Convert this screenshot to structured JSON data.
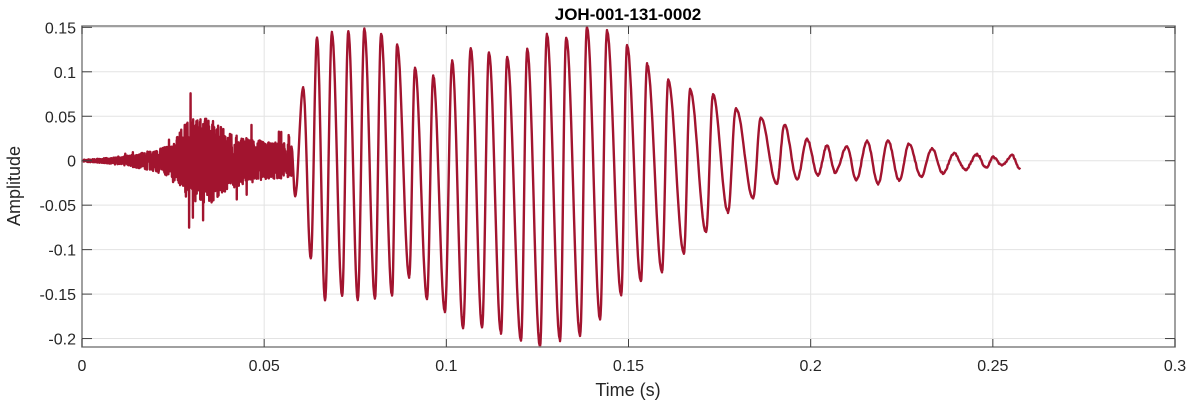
{
  "chart_data": {
    "type": "line",
    "title": "JOH-001-131-0002",
    "xlabel": "Time (s)",
    "ylabel": "Amplitude",
    "xlim": [
      0,
      0.3
    ],
    "ylim": [
      -0.2095,
      0.1515
    ],
    "xticks": [
      0,
      0.05,
      0.1,
      0.15,
      0.2,
      0.25,
      0.3
    ],
    "xtick_labels": [
      "0",
      "0.05",
      "0.1",
      "0.15",
      "0.2",
      "0.25",
      "0.3"
    ],
    "yticks": [
      0.15,
      0.1,
      0.05,
      0,
      -0.05,
      -0.1,
      -0.15,
      -0.2
    ],
    "ytick_labels": [
      "0.15",
      "0.1",
      "0.05",
      "0",
      "-0.05",
      "-0.1",
      "-0.15",
      "-0.2"
    ],
    "grid": true,
    "line_color": "#a2142f",
    "noisy_onset_envelope": [
      [
        0.0,
        0.001
      ],
      [
        0.01,
        0.004
      ],
      [
        0.02,
        0.012
      ],
      [
        0.025,
        0.02
      ],
      [
        0.028,
        0.04
      ],
      [
        0.031,
        0.05
      ],
      [
        0.035,
        0.05
      ],
      [
        0.04,
        0.032
      ],
      [
        0.045,
        0.026
      ],
      [
        0.05,
        0.022
      ],
      [
        0.055,
        0.02
      ],
      [
        0.0575,
        0.018
      ]
    ],
    "waveform_extrema": [
      [
        0.0575,
        0.015
      ],
      [
        0.0585,
        -0.04
      ],
      [
        0.0607,
        0.082
      ],
      [
        0.0628,
        -0.11
      ],
      [
        0.0645,
        0.139
      ],
      [
        0.0667,
        -0.157
      ],
      [
        0.0686,
        0.144
      ],
      [
        0.0714,
        -0.152
      ],
      [
        0.0731,
        0.146
      ],
      [
        0.0757,
        -0.156
      ],
      [
        0.0775,
        0.148
      ],
      [
        0.0804,
        -0.155
      ],
      [
        0.0821,
        0.143
      ],
      [
        0.0851,
        -0.151
      ],
      [
        0.0865,
        0.131
      ],
      [
        0.0898,
        -0.131
      ],
      [
        0.0914,
        0.104
      ],
      [
        0.0947,
        -0.155
      ],
      [
        0.0964,
        0.095
      ],
      [
        0.0996,
        -0.17
      ],
      [
        0.1016,
        0.112
      ],
      [
        0.1046,
        -0.188
      ],
      [
        0.1067,
        0.127
      ],
      [
        0.1098,
        -0.188
      ],
      [
        0.1117,
        0.122
      ],
      [
        0.115,
        -0.194
      ],
      [
        0.1167,
        0.117
      ],
      [
        0.1205,
        -0.202
      ],
      [
        0.1222,
        0.125
      ],
      [
        0.1257,
        -0.209
      ],
      [
        0.1276,
        0.142
      ],
      [
        0.1312,
        -0.202
      ],
      [
        0.1329,
        0.139
      ],
      [
        0.1367,
        -0.197
      ],
      [
        0.1386,
        0.15
      ],
      [
        0.1422,
        -0.178
      ],
      [
        0.1441,
        0.146
      ],
      [
        0.148,
        -0.151
      ],
      [
        0.1496,
        0.13
      ],
      [
        0.1534,
        -0.136
      ],
      [
        0.1551,
        0.109
      ],
      [
        0.1592,
        -0.125
      ],
      [
        0.1609,
        0.091
      ],
      [
        0.1652,
        -0.104
      ],
      [
        0.1669,
        0.08
      ],
      [
        0.1713,
        -0.08
      ],
      [
        0.1732,
        0.074
      ],
      [
        0.1773,
        -0.058
      ],
      [
        0.1795,
        0.059
      ],
      [
        0.1842,
        -0.042
      ],
      [
        0.1863,
        0.048
      ],
      [
        0.1907,
        -0.026
      ],
      [
        0.1928,
        0.04
      ],
      [
        0.1963,
        -0.021
      ],
      [
        0.199,
        0.024
      ],
      [
        0.202,
        -0.016
      ],
      [
        0.2045,
        0.017
      ],
      [
        0.2067,
        -0.013
      ],
      [
        0.21,
        0.016
      ],
      [
        0.2125,
        -0.022
      ],
      [
        0.2155,
        0.022
      ],
      [
        0.2185,
        -0.026
      ],
      [
        0.2212,
        0.023
      ],
      [
        0.2243,
        -0.022
      ],
      [
        0.227,
        0.019
      ],
      [
        0.2303,
        -0.018
      ],
      [
        0.2333,
        0.014
      ],
      [
        0.2363,
        -0.014
      ],
      [
        0.2394,
        0.008
      ],
      [
        0.2424,
        -0.01
      ],
      [
        0.2457,
        0.007
      ],
      [
        0.2481,
        -0.008
      ],
      [
        0.2501,
        0.004
      ],
      [
        0.2525,
        -0.005
      ],
      [
        0.2553,
        0.006
      ],
      [
        0.2575,
        -0.01
      ]
    ]
  }
}
